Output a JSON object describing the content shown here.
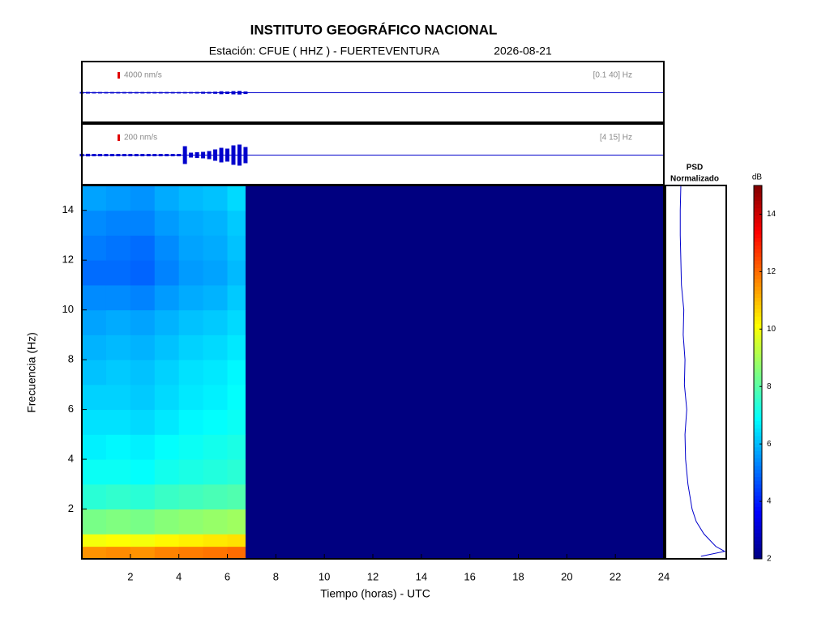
{
  "chart_data": {
    "type": "spectrogram",
    "title": "INSTITUTO GEOGRÁFICO NACIONAL",
    "subtitle": "Estación:  CFUE ( HHZ ) - FUERTEVENTURA",
    "date": "2026-08-21",
    "traces": [
      {
        "scale": {
          "value": 4000,
          "label": "4000 nm/s"
        },
        "band": "[0.1 40] Hz",
        "color": "#0000cc",
        "x": [
          0,
          0.25,
          0.5,
          0.75,
          1,
          1.25,
          1.5,
          1.75,
          2,
          2.25,
          2.5,
          2.75,
          3,
          3.25,
          3.5,
          3.75,
          4,
          4.25,
          4.5,
          4.75,
          5,
          5.25,
          5.5,
          5.75,
          6,
          6.25,
          6.5,
          6.75
        ],
        "values": [
          1000,
          1000,
          900,
          900,
          900,
          900,
          900,
          900,
          900,
          900,
          900,
          900,
          900,
          900,
          900,
          900,
          900,
          900,
          900,
          1000,
          1200,
          1100,
          1300,
          1800,
          1500,
          2000,
          2200,
          1600
        ]
      },
      {
        "scale": {
          "value": 200,
          "label": "200 nm/s"
        },
        "band": "[4 15] Hz",
        "color": "#0000cc",
        "x": [
          0,
          0.25,
          0.5,
          0.75,
          1,
          1.25,
          1.5,
          1.75,
          2,
          2.25,
          2.5,
          2.75,
          3,
          3.25,
          3.5,
          3.75,
          4,
          4.25,
          4.5,
          4.75,
          5,
          5.25,
          5.5,
          5.75,
          6,
          6.25,
          6.5,
          6.75
        ],
        "values": [
          80,
          80,
          70,
          70,
          70,
          70,
          70,
          70,
          70,
          70,
          70,
          70,
          70,
          70,
          70,
          70,
          70,
          550,
          150,
          180,
          200,
          250,
          350,
          450,
          400,
          600,
          650,
          500
        ]
      }
    ],
    "xlabel": "Tiempo (horas) - UTC",
    "ylabel": "Frecuencia  (Hz)",
    "xlim": [
      0,
      24
    ],
    "xticks": [
      2,
      4,
      6,
      8,
      10,
      12,
      14,
      16,
      18,
      20,
      22,
      24
    ],
    "ylim": [
      0,
      15
    ],
    "yticks": [
      2,
      4,
      6,
      8,
      10,
      12,
      14
    ],
    "time_edges": [
      0,
      1,
      2,
      3,
      4,
      5,
      6,
      6.75,
      24
    ],
    "freq_edges": [
      0,
      0.5,
      1,
      2,
      3,
      4,
      5,
      6,
      7,
      8,
      9,
      10,
      11,
      12,
      13,
      14,
      15
    ],
    "z": [
      [
        11.5,
        11.6,
        11.5,
        11.7,
        11.8,
        11.9,
        12.0,
        2
      ],
      [
        10.0,
        10.1,
        10.0,
        10.2,
        10.3,
        10.4,
        10.5,
        2
      ],
      [
        8.4,
        8.5,
        8.4,
        8.6,
        8.7,
        8.8,
        8.9,
        2
      ],
      [
        7.4,
        7.5,
        7.4,
        7.6,
        7.7,
        7.8,
        7.9,
        2
      ],
      [
        7.0,
        7.0,
        6.9,
        7.1,
        7.2,
        7.3,
        7.4,
        2
      ],
      [
        6.7,
        6.8,
        6.7,
        6.9,
        7.0,
        7.1,
        7.2,
        2
      ],
      [
        6.5,
        6.5,
        6.4,
        6.6,
        6.8,
        6.9,
        7.0,
        2
      ],
      [
        6.3,
        6.3,
        6.2,
        6.4,
        6.6,
        6.7,
        6.9,
        2
      ],
      [
        6.1,
        6.2,
        6.1,
        6.3,
        6.5,
        6.6,
        6.8,
        2
      ],
      [
        5.9,
        6.0,
        5.9,
        6.1,
        6.3,
        6.4,
        6.6,
        2
      ],
      [
        5.7,
        5.8,
        5.7,
        5.9,
        6.1,
        6.2,
        6.4,
        2
      ],
      [
        5.4,
        5.4,
        5.3,
        5.6,
        5.8,
        5.9,
        6.2,
        2
      ],
      [
        5.0,
        5.0,
        4.9,
        5.3,
        5.6,
        5.7,
        6.0,
        2
      ],
      [
        5.2,
        5.1,
        5.0,
        5.4,
        5.7,
        5.8,
        6.1,
        2
      ],
      [
        5.4,
        5.3,
        5.3,
        5.6,
        5.8,
        5.9,
        6.2,
        2
      ],
      [
        5.7,
        5.6,
        5.5,
        5.8,
        6.0,
        6.1,
        6.4,
        2
      ]
    ],
    "psd_title": "PSD",
    "psd_subtitle": "Normalizado",
    "psd_freq": [
      0.1,
      0.3,
      0.5,
      1,
      1.5,
      2,
      3,
      4,
      5,
      6,
      7,
      8,
      9,
      10,
      11,
      12,
      13,
      14,
      15
    ],
    "psd_values": [
      0.6,
      1.0,
      0.85,
      0.65,
      0.52,
      0.45,
      0.38,
      0.34,
      0.33,
      0.36,
      0.32,
      0.33,
      0.3,
      0.31,
      0.27,
      0.26,
      0.25,
      0.25,
      0.26
    ],
    "psd_color": "#0000cc",
    "colorbar_label": "dB",
    "clim": [
      2,
      15
    ],
    "cticks": [
      2,
      4,
      6,
      8,
      10,
      12,
      14
    ]
  }
}
